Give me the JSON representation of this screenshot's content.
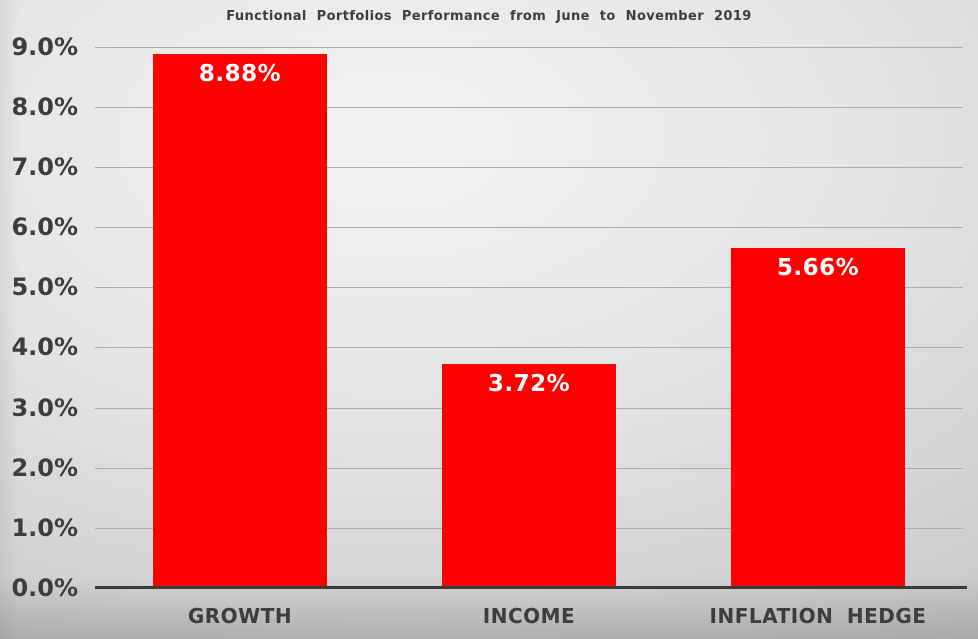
{
  "chart_data": {
    "type": "bar",
    "title": "Functional Portfolios Performance from June to November 2019",
    "categories": [
      "GROWTH",
      "INCOME",
      "INFLATION HEDGE"
    ],
    "values": [
      8.88,
      3.72,
      5.66
    ],
    "value_labels": [
      "8.88%",
      "3.72%",
      "5.66%"
    ],
    "ytick_labels": [
      "0.0%",
      "1.0%",
      "2.0%",
      "3.0%",
      "4.0%",
      "5.0%",
      "6.0%",
      "7.0%",
      "8.0%",
      "9.0%"
    ],
    "ylim": [
      0,
      9
    ],
    "ytick_step": 1,
    "grid": true,
    "legend": false,
    "xlabel": "",
    "ylabel": "",
    "colors": {
      "bar": "#fe0000",
      "bar_value_label": "#ffffff",
      "text": "#3d3d3d",
      "gridline": "#adadad",
      "axis_line": "#3a3a3a"
    }
  }
}
